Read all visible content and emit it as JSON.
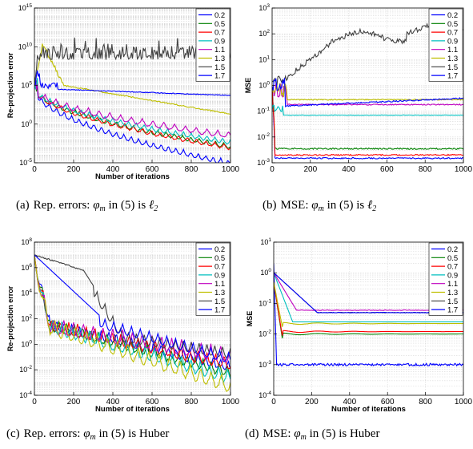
{
  "chart_data": [
    {
      "id": "a",
      "type": "line",
      "yscale": "log",
      "xlabel": "Number of iterations",
      "ylabel": "Re-projection error",
      "xlim": [
        0,
        1000
      ],
      "ylim": [
        1e-05,
        1000000000000000.0
      ],
      "xticks": [
        "0",
        "200",
        "400",
        "600",
        "800",
        "1000"
      ],
      "yticks": [
        {
          "b": "10",
          "e": "-5"
        },
        {
          "b": "10",
          "e": "0"
        },
        {
          "b": "10",
          "e": "5"
        },
        {
          "b": "10",
          "e": "10"
        },
        {
          "b": "10",
          "e": "15"
        }
      ],
      "grid": true,
      "legend_position": "top-right",
      "series": [
        {
          "name": "0.2",
          "color": "#0000ff",
          "start": 100000.0,
          "end": 2e-05,
          "osc": 0.35,
          "period": 38
        },
        {
          "name": "0.5",
          "color": "#008000",
          "start": 100000.0,
          "end": 0.003,
          "osc": 0.3,
          "period": 42
        },
        {
          "name": "0.7",
          "color": "#ff0000",
          "start": 100000.0,
          "end": 0.002,
          "osc": 0.3,
          "period": 46
        },
        {
          "name": "0.9",
          "color": "#00bfbf",
          "start": 100000.0,
          "end": 0.01,
          "osc": 0.3,
          "period": 40
        },
        {
          "name": "1.1",
          "color": "#bf00bf",
          "start": 100000.0,
          "end": 0.1,
          "osc": 0.4,
          "period": 55
        },
        {
          "name": "1.3",
          "color": "#bfbf00",
          "start": 100000000000.0,
          "end": 20.0,
          "osc": 0.1,
          "period": 30
        },
        {
          "name": "1.5",
          "color": "#404040",
          "start": 1000000000.0,
          "end": 1000000000.0,
          "osc": 0.6,
          "period": 8
        },
        {
          "name": "1.7",
          "color": "#0000ff",
          "start": 10000000.0,
          "end": 5000.0,
          "osc": 0.08,
          "period": 30
        }
      ]
    },
    {
      "id": "b",
      "type": "line",
      "yscale": "log",
      "xlabel": "",
      "ylabel": "MSE",
      "xlim": [
        0,
        1000
      ],
      "ylim": [
        0.001,
        1000.0
      ],
      "xticks": [
        "0",
        "200",
        "400",
        "600",
        "800",
        "1000"
      ],
      "yticks": [
        {
          "b": "10",
          "e": "-3"
        },
        {
          "b": "10",
          "e": "-2"
        },
        {
          "b": "10",
          "e": "-1"
        },
        {
          "b": "10",
          "e": "0"
        },
        {
          "b": "10",
          "e": "1"
        },
        {
          "b": "10",
          "e": "2"
        },
        {
          "b": "10",
          "e": "3"
        }
      ],
      "grid": true,
      "legend_position": "top-right",
      "series": [
        {
          "name": "0.2",
          "color": "#0000ff",
          "start": 1.0,
          "end": 0.0015
        },
        {
          "name": "0.5",
          "color": "#008000",
          "start": 1.0,
          "end": 0.0035
        },
        {
          "name": "0.7",
          "color": "#ff0000",
          "start": 1.0,
          "end": 0.002
        },
        {
          "name": "0.9",
          "color": "#00bfbf",
          "start": 0.1,
          "end": 0.07
        },
        {
          "name": "1.1",
          "color": "#bf00bf",
          "start": 1.0,
          "end": 0.18
        },
        {
          "name": "1.3",
          "color": "#bfbf00",
          "start": 1.0,
          "end": 0.28
        },
        {
          "name": "1.5",
          "color": "#404040",
          "start": 1.0,
          "end": 150
        },
        {
          "name": "1.7",
          "color": "#0000ff",
          "start": 0.8,
          "end": 0.3
        }
      ]
    },
    {
      "id": "c",
      "type": "line",
      "yscale": "log",
      "xlabel": "Number of iterations",
      "ylabel": "Re-projection error",
      "xlim": [
        0,
        1000
      ],
      "ylim": [
        0.0001,
        100000000.0
      ],
      "xticks": [
        "0",
        "200",
        "400",
        "600",
        "800",
        "1000"
      ],
      "yticks": [
        {
          "b": "10",
          "e": "-4"
        },
        {
          "b": "10",
          "e": "-2"
        },
        {
          "b": "10",
          "e": "0"
        },
        {
          "b": "10",
          "e": "2"
        },
        {
          "b": "10",
          "e": "4"
        },
        {
          "b": "10",
          "e": "6"
        },
        {
          "b": "10",
          "e": "8"
        }
      ],
      "grid": true,
      "legend_position": "top-right",
      "series": [
        {
          "name": "0.2",
          "color": "#0000ff",
          "start": 10000000.0,
          "end": 0.05
        },
        {
          "name": "0.5",
          "color": "#008000",
          "start": 10000000.0,
          "end": 0.02
        },
        {
          "name": "0.7",
          "color": "#ff0000",
          "start": 10000000.0,
          "end": 0.1
        },
        {
          "name": "0.9",
          "color": "#00bfbf",
          "start": 10000000.0,
          "end": 0.01
        },
        {
          "name": "1.1",
          "color": "#bf00bf",
          "start": 10000000.0,
          "end": 0.5
        },
        {
          "name": "1.3",
          "color": "#bfbf00",
          "start": 10000000.0,
          "end": 0.003
        },
        {
          "name": "1.5",
          "color": "#404040",
          "start": 10000000.0,
          "end": 0.5
        },
        {
          "name": "1.7",
          "color": "#0000ff",
          "start": 10000000.0,
          "end": 0.2
        }
      ]
    },
    {
      "id": "d",
      "type": "line",
      "yscale": "log",
      "xlabel": "Number of iterations",
      "ylabel": "MSE",
      "xlim": [
        0,
        1000
      ],
      "ylim": [
        0.0001,
        10
      ],
      "xticks": [
        "0",
        "200",
        "400",
        "600",
        "800",
        "1000"
      ],
      "yticks": [
        {
          "b": "10",
          "e": "-4"
        },
        {
          "b": "10",
          "e": "-3"
        },
        {
          "b": "10",
          "e": "-2"
        },
        {
          "b": "10",
          "e": "-1"
        },
        {
          "b": "10",
          "e": "0"
        },
        {
          "b": "10",
          "e": "1"
        }
      ],
      "grid": true,
      "legend_position": "top-right",
      "series": [
        {
          "name": "0.2",
          "color": "#0000ff",
          "start": 2.0,
          "end": 0.001
        },
        {
          "name": "0.5",
          "color": "#008000",
          "start": 0.5,
          "end": 0.01
        },
        {
          "name": "0.7",
          "color": "#ff0000",
          "start": 0.5,
          "end": 0.012
        },
        {
          "name": "0.9",
          "color": "#00bfbf",
          "start": 1.0,
          "end": 0.025
        },
        {
          "name": "1.1",
          "color": "#bf00bf",
          "start": 1.0,
          "end": 0.06
        },
        {
          "name": "1.3",
          "color": "#bfbf00",
          "start": 0.5,
          "end": 0.022
        },
        {
          "name": "1.5",
          "color": "#404040",
          "start": 1.0,
          "end": 0.05
        },
        {
          "name": "1.7",
          "color": "#0000ff",
          "start": 1.0,
          "end": 0.05
        }
      ]
    }
  ],
  "captions": [
    {
      "id": "a",
      "label": "(a)",
      "pre": "Rep. errors:",
      "phi": "φ",
      "sub": "m",
      "mid": "in (5) is",
      "post": "ℓ",
      "postsub": "2"
    },
    {
      "id": "b",
      "label": "(b)",
      "pre": "MSE:",
      "phi": "φ",
      "sub": "m",
      "mid": "in (5) is",
      "post": "ℓ",
      "postsub": "2"
    },
    {
      "id": "c",
      "label": "(c)",
      "pre": "Rep. errors:",
      "phi": "φ",
      "sub": "m",
      "mid": "in (5) is Huber",
      "post": "",
      "postsub": ""
    },
    {
      "id": "d",
      "label": "(d)",
      "pre": "MSE:",
      "phi": "φ",
      "sub": "m",
      "mid": "in (5) is Huber",
      "post": "",
      "postsub": ""
    }
  ]
}
